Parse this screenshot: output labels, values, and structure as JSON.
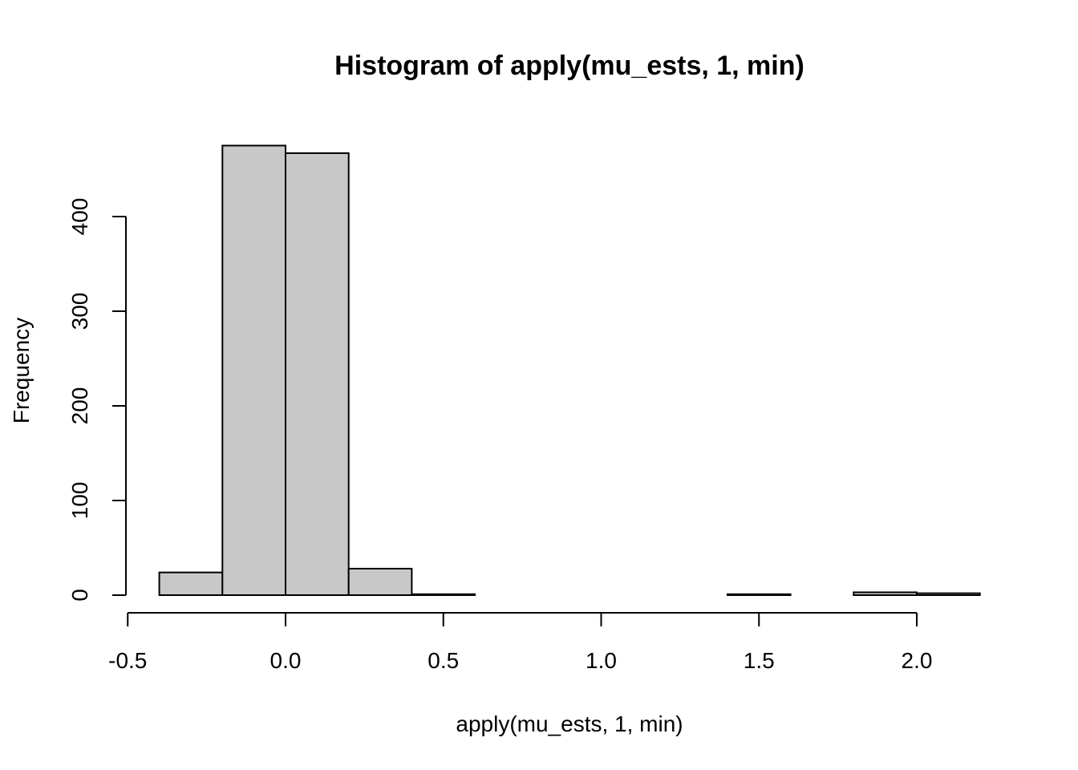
{
  "chart_data": {
    "type": "bar",
    "subtype": "histogram",
    "title": "Histogram of apply(mu_ests, 1, min)",
    "xlabel": "apply(mu_ests, 1, min)",
    "ylabel": "Frequency",
    "bin_edges": [
      -0.4,
      -0.2,
      0.0,
      0.2,
      0.4,
      0.6,
      0.8,
      1.0,
      1.2,
      1.4,
      1.6,
      1.8,
      2.0,
      2.2
    ],
    "values": [
      24,
      475,
      467,
      28,
      1,
      0,
      0,
      0,
      0,
      1,
      0,
      3,
      2
    ],
    "xlim": [
      -0.5,
      2.2
    ],
    "ylim": [
      0,
      400
    ],
    "x_ticks": [
      -0.5,
      0.0,
      0.5,
      1.0,
      1.5,
      2.0
    ],
    "x_tick_labels": [
      "-0.5",
      "0.0",
      "0.5",
      "1.0",
      "1.5",
      "2.0"
    ],
    "y_ticks": [
      0,
      100,
      200,
      300,
      400
    ],
    "y_tick_labels": [
      "0",
      "100",
      "200",
      "300",
      "400"
    ],
    "bar_color": "#c8c8c8",
    "grid": false
  }
}
